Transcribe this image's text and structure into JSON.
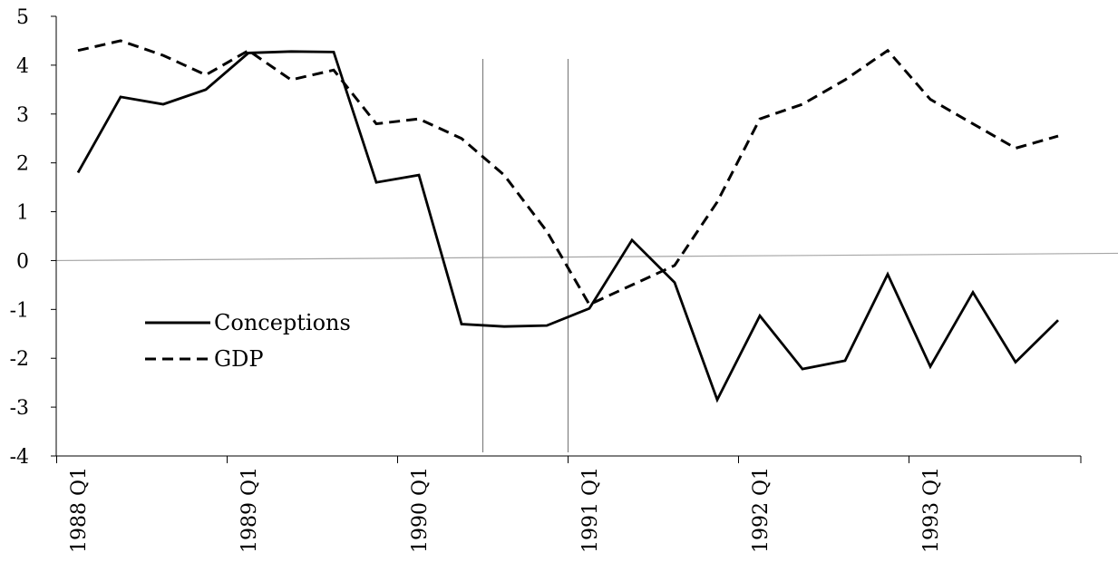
{
  "chart_data": {
    "type": "line",
    "x": [
      "1988 Q1",
      "1988 Q2",
      "1988 Q3",
      "1988 Q4",
      "1989 Q1",
      "1989 Q2",
      "1989 Q3",
      "1989 Q4",
      "1990 Q1",
      "1990 Q2",
      "1990 Q3",
      "1990 Q4",
      "1991 Q1",
      "1991 Q2",
      "1991 Q3",
      "1991 Q4",
      "1992 Q1",
      "1992 Q2",
      "1992 Q3",
      "1992 Q4",
      "1993 Q1",
      "1993 Q2",
      "1993 Q3",
      "1993 Q4"
    ],
    "xticks": [
      "1988 Q1",
      "1989 Q1",
      "1990 Q1",
      "1991 Q1",
      "1992 Q1",
      "1993 Q1"
    ],
    "ylim": [
      -4,
      5
    ],
    "yticks": [
      -4,
      -3,
      -2,
      -1,
      0,
      1,
      2,
      3,
      4,
      5
    ],
    "series": [
      {
        "name": "Conceptions",
        "style": "solid",
        "values": [
          1.8,
          3.35,
          3.2,
          3.5,
          4.25,
          4.28,
          4.27,
          1.6,
          1.75,
          -1.3,
          -1.35,
          -1.33,
          -0.98,
          0.42,
          -0.45,
          -2.85,
          -1.13,
          -2.22,
          -2.05,
          -0.28,
          -2.17,
          -0.65,
          -2.08,
          -1.22
        ]
      },
      {
        "name": "GDP",
        "style": "dashed",
        "values": [
          4.3,
          4.5,
          4.2,
          3.8,
          4.3,
          3.7,
          3.9,
          2.8,
          2.9,
          2.5,
          1.75,
          0.6,
          -0.9,
          -0.5,
          -0.1,
          1.2,
          2.9,
          3.2,
          3.7,
          4.3,
          3.3,
          2.8,
          2.3,
          2.55
        ]
      }
    ],
    "reference_lines": [
      {
        "x": "1990 Q3"
      },
      {
        "x": "1991 Q1"
      }
    ],
    "legend_position": "center-left",
    "grid": false
  }
}
